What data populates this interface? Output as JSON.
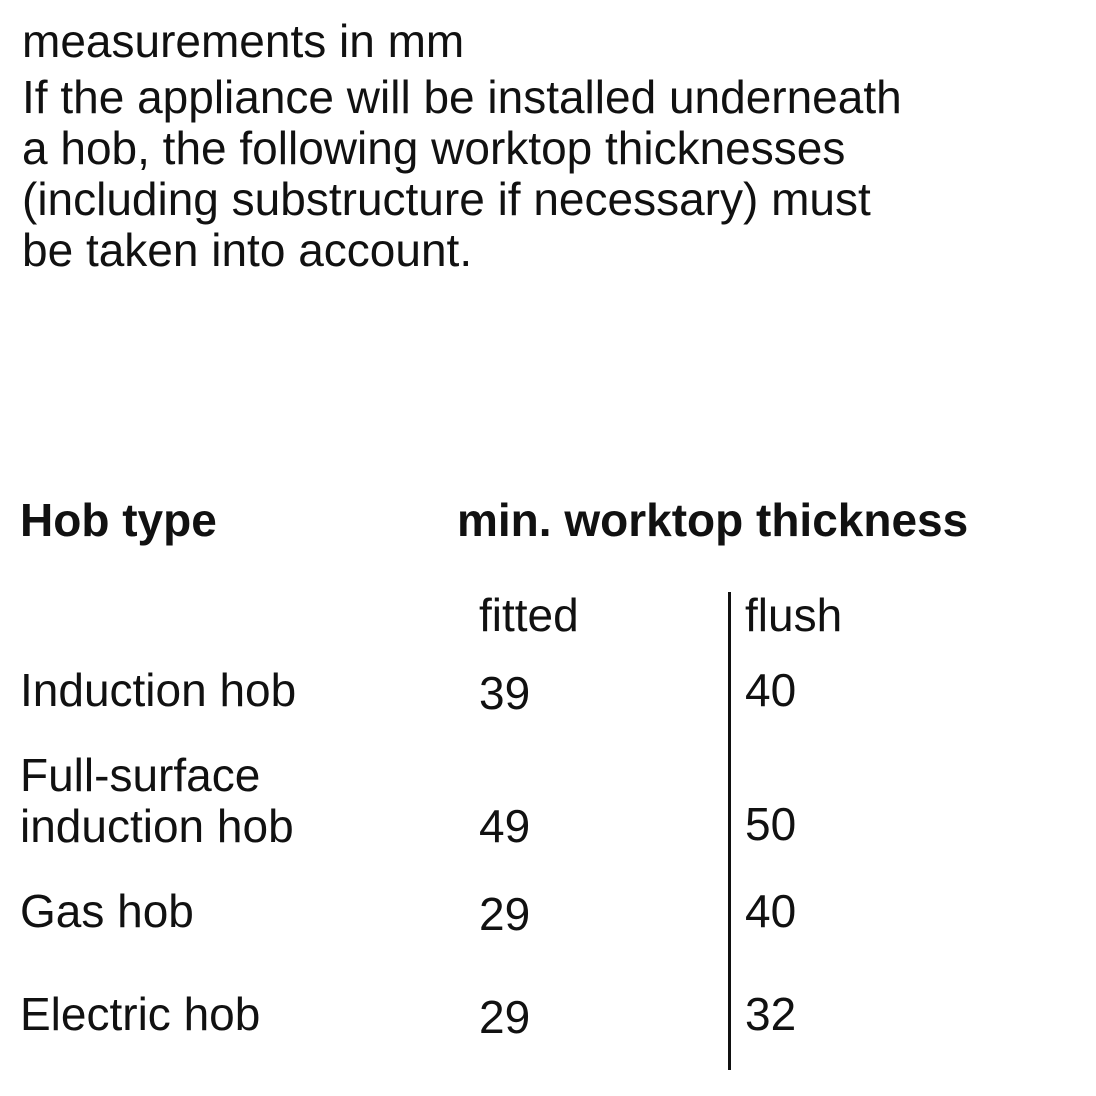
{
  "intro": {
    "line0": "measurements in mm",
    "line1": "If the appliance will be installed underneath",
    "line2": "a hob, the following worktop thicknesses",
    "line3": "(including substructure if necessary) must",
    "line4": "be taken into account."
  },
  "table": {
    "header_type": "Hob type",
    "header_thickness": "min. worktop thickness",
    "col_fitted": "fitted",
    "col_flush": "flush",
    "rows": [
      {
        "name1": "Induction hob",
        "name2": "",
        "fitted": "39",
        "flush": "40"
      },
      {
        "name1": "Full-surface",
        "name2": "induction hob",
        "fitted": "49",
        "flush": "50"
      },
      {
        "name1": "Gas hob",
        "name2": "",
        "fitted": "29",
        "flush": "40"
      },
      {
        "name1": "Electric hob",
        "name2": "",
        "fitted": "29",
        "flush": "32"
      }
    ]
  }
}
